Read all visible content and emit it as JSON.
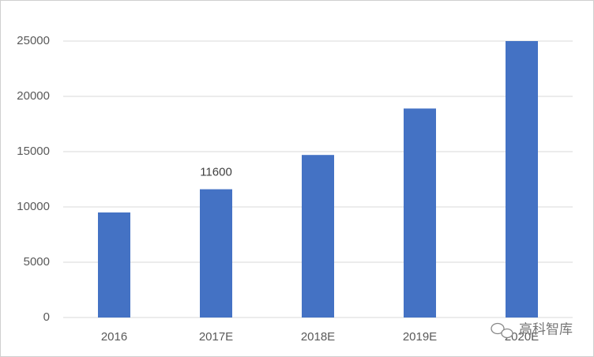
{
  "chart_data": {
    "type": "bar",
    "categories": [
      "2016",
      "2017E",
      "2018E",
      "2019E",
      "2020E"
    ],
    "values": [
      9500,
      11600,
      14700,
      18900,
      25000
    ],
    "show_value_label": [
      false,
      true,
      false,
      false,
      false
    ],
    "color": "#4472c4",
    "ylim": [
      0,
      25000
    ],
    "yticks": [
      0,
      5000,
      10000,
      15000,
      20000,
      25000
    ],
    "grid": true
  },
  "watermark": "高科智库"
}
